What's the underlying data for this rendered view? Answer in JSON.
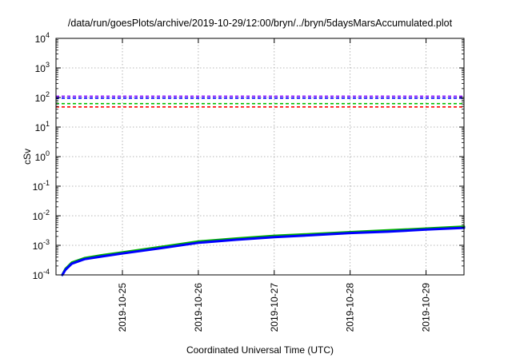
{
  "chart_data": {
    "type": "line",
    "title": "/data/run/goesPlots/archive/2019-10-29/12:00/bryn/../bryn/5daysMarsAccumulated.plot",
    "xlabel": "Coordinated Universal Time (UTC)",
    "ylabel": "cSv",
    "yscale": "log",
    "ylim": [
      0.0001,
      10000
    ],
    "xlim": [
      "2019-10-24T03:00",
      "2019-10-29T12:00"
    ],
    "grid": true,
    "x_ticks": [
      "2019-10-25",
      "2019-10-26",
      "2019-10-27",
      "2019-10-28",
      "2019-10-29"
    ],
    "y_ticks": [
      {
        "base": "10",
        "exp": "-4",
        "value": 0.0001
      },
      {
        "base": "10",
        "exp": "-3",
        "value": 0.001
      },
      {
        "base": "10",
        "exp": "-2",
        "value": 0.01
      },
      {
        "base": "10",
        "exp": "-1",
        "value": 0.1
      },
      {
        "base": "10",
        "exp": "0",
        "value": 1
      },
      {
        "base": "10",
        "exp": "1",
        "value": 10
      },
      {
        "base": "10",
        "exp": "2",
        "value": 100
      },
      {
        "base": "10",
        "exp": "3",
        "value": 1000
      },
      {
        "base": "10",
        "exp": "4",
        "value": 10000
      }
    ],
    "thresholds": [
      {
        "value": 110,
        "color": "#8000ff",
        "style": "dashed"
      },
      {
        "value": 95,
        "color": "#0000ff",
        "style": "dashed"
      },
      {
        "value": 62,
        "color": "#00c000",
        "style": "dashed"
      },
      {
        "value": 48,
        "color": "#ff0000",
        "style": "dashed"
      }
    ],
    "series": [
      {
        "color": "#00b000",
        "x": [
          "2019-10-24T05:00",
          "2019-10-24T06:00",
          "2019-10-24T08:00",
          "2019-10-24T12:00",
          "2019-10-24T18:00",
          "2019-10-25T00:00",
          "2019-10-25T12:00",
          "2019-10-26T00:00",
          "2019-10-26T12:00",
          "2019-10-27T00:00",
          "2019-10-27T12:00",
          "2019-10-28T00:00",
          "2019-10-28T12:00",
          "2019-10-29T00:00",
          "2019-10-29T12:00"
        ],
        "y": [
          0.0001,
          0.00016,
          0.00026,
          0.00037,
          0.00047,
          0.00058,
          0.00088,
          0.00135,
          0.0017,
          0.0021,
          0.0024,
          0.0028,
          0.0032,
          0.0037,
          0.0043
        ]
      },
      {
        "color": "#0000ff",
        "x": [
          "2019-10-24T05:00",
          "2019-10-24T06:00",
          "2019-10-24T08:00",
          "2019-10-24T12:00",
          "2019-10-24T18:00",
          "2019-10-25T00:00",
          "2019-10-25T12:00",
          "2019-10-26T00:00",
          "2019-10-26T12:00",
          "2019-10-27T00:00",
          "2019-10-27T12:00",
          "2019-10-28T00:00",
          "2019-10-28T12:00",
          "2019-10-29T00:00",
          "2019-10-29T12:00"
        ],
        "y": [
          0.0001,
          0.00015,
          0.00024,
          0.00034,
          0.00043,
          0.00053,
          0.0008,
          0.00122,
          0.00155,
          0.0019,
          0.0022,
          0.0026,
          0.0029,
          0.0034,
          0.0039
        ]
      }
    ]
  },
  "colors": {
    "grid": "#a0a0a0",
    "axis": "#000000"
  }
}
